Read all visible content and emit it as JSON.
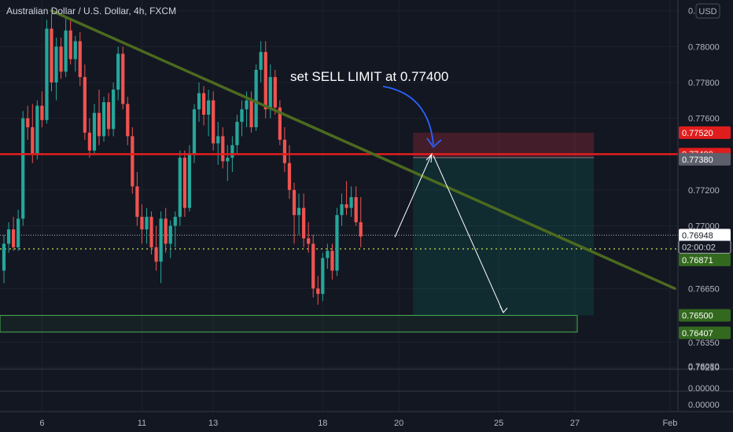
{
  "chart_data": {
    "type": "candlestick",
    "title": "Australian Dollar / U.S. Dollar, 4h, FXCM",
    "currency_label": "USD",
    "annotation": "set SELL LIMIT at 0.77400",
    "ylim": [
      0.762,
      0.7826
    ],
    "x_ticks": [
      {
        "label": "6",
        "t": 8
      },
      {
        "label": "11",
        "t": 29
      },
      {
        "label": "13",
        "t": 44
      },
      {
        "label": "18",
        "t": 67
      },
      {
        "label": "20",
        "t": 83
      },
      {
        "label": "25",
        "t": 104
      },
      {
        "label": "27",
        "t": 120
      },
      {
        "label": "Feb",
        "t": 140
      }
    ],
    "y_ticks": [
      "0.78200",
      "0.78000",
      "0.77800",
      "0.77600",
      "0.77200",
      "0.77000",
      "0.76650",
      "0.76350",
      "0.76210"
    ],
    "sub_axis_ticks": [
      "0.76080",
      "0.00000",
      "0.00000"
    ],
    "price_badges": [
      {
        "label": "0.77520",
        "kind": "red"
      },
      {
        "label": "0.77400",
        "kind": "red"
      },
      {
        "label": "0.77380",
        "kind": "gray"
      },
      {
        "label": "0.76948",
        "kind": "white"
      },
      {
        "label": "02:00:02",
        "kind": "dark"
      },
      {
        "label": "0.76871",
        "kind": "green"
      },
      {
        "label": "0.76500",
        "kind": "green"
      },
      {
        "label": "0.76407",
        "kind": "green"
      }
    ],
    "levels": {
      "resistance": 0.774,
      "current": 0.76948,
      "average": 0.76871,
      "support_top": 0.765,
      "support_bottom": 0.76407,
      "stop_top": 0.7752,
      "entry_box_bottom": 0.7738
    },
    "trendline": {
      "t1": 10,
      "v1": 0.782,
      "t2": 141,
      "v2": 0.7665
    },
    "candles": [
      [
        0,
        0.7675,
        0.7695,
        0.7668,
        0.769
      ],
      [
        1,
        0.769,
        0.7702,
        0.7685,
        0.7698
      ],
      [
        2,
        0.7698,
        0.7705,
        0.7686,
        0.7688
      ],
      [
        3,
        0.7688,
        0.7709,
        0.7686,
        0.7704
      ],
      [
        4,
        0.7704,
        0.7764,
        0.77,
        0.776
      ],
      [
        5,
        0.776,
        0.7767,
        0.7748,
        0.7755
      ],
      [
        6,
        0.7755,
        0.7768,
        0.7735,
        0.774
      ],
      [
        7,
        0.774,
        0.777,
        0.7737,
        0.7767
      ],
      [
        8,
        0.7767,
        0.7775,
        0.7755,
        0.7759
      ],
      [
        9,
        0.7759,
        0.7815,
        0.7757,
        0.781
      ],
      [
        10,
        0.781,
        0.7818,
        0.7775,
        0.778
      ],
      [
        11,
        0.778,
        0.7805,
        0.777,
        0.78
      ],
      [
        12,
        0.78,
        0.7805,
        0.7782,
        0.7786
      ],
      [
        13,
        0.7786,
        0.7816,
        0.7783,
        0.7809
      ],
      [
        14,
        0.7809,
        0.7815,
        0.779,
        0.7793
      ],
      [
        15,
        0.7793,
        0.7806,
        0.7786,
        0.7803
      ],
      [
        16,
        0.7803,
        0.7808,
        0.7778,
        0.7783
      ],
      [
        17,
        0.7783,
        0.779,
        0.7748,
        0.7752
      ],
      [
        18,
        0.7752,
        0.776,
        0.7738,
        0.7742
      ],
      [
        19,
        0.7742,
        0.7768,
        0.774,
        0.7763
      ],
      [
        20,
        0.7763,
        0.7776,
        0.7745,
        0.775
      ],
      [
        21,
        0.775,
        0.7772,
        0.7747,
        0.7769
      ],
      [
        22,
        0.7769,
        0.7774,
        0.775,
        0.7754
      ],
      [
        23,
        0.7754,
        0.778,
        0.775,
        0.7776
      ],
      [
        24,
        0.7776,
        0.78,
        0.777,
        0.7796
      ],
      [
        25,
        0.7796,
        0.78,
        0.7765,
        0.7768
      ],
      [
        26,
        0.7768,
        0.7772,
        0.7745,
        0.775
      ],
      [
        27,
        0.775,
        0.7755,
        0.7718,
        0.7722
      ],
      [
        28,
        0.7722,
        0.773,
        0.77,
        0.7705
      ],
      [
        29,
        0.7705,
        0.7712,
        0.769,
        0.7698
      ],
      [
        30,
        0.7698,
        0.771,
        0.769,
        0.7705
      ],
      [
        31,
        0.7705,
        0.7708,
        0.7684,
        0.7688
      ],
      [
        32,
        0.7688,
        0.77,
        0.7675,
        0.768
      ],
      [
        33,
        0.768,
        0.7708,
        0.7668,
        0.7704
      ],
      [
        34,
        0.7704,
        0.771,
        0.7685,
        0.769
      ],
      [
        35,
        0.769,
        0.7703,
        0.7682,
        0.77
      ],
      [
        36,
        0.77,
        0.7708,
        0.7688,
        0.7705
      ],
      [
        37,
        0.7705,
        0.7742,
        0.77,
        0.7738
      ],
      [
        38,
        0.7738,
        0.7742,
        0.7705,
        0.771
      ],
      [
        39,
        0.771,
        0.7745,
        0.7708,
        0.774
      ],
      [
        40,
        0.774,
        0.7768,
        0.7735,
        0.7765
      ],
      [
        41,
        0.7765,
        0.778,
        0.7758,
        0.7774
      ],
      [
        42,
        0.7774,
        0.7778,
        0.7756,
        0.7762
      ],
      [
        43,
        0.7762,
        0.7776,
        0.775,
        0.777
      ],
      [
        44,
        0.777,
        0.7775,
        0.7742,
        0.7746
      ],
      [
        45,
        0.7746,
        0.7758,
        0.7734,
        0.775
      ],
      [
        46,
        0.775,
        0.7755,
        0.7732,
        0.7736
      ],
      [
        47,
        0.7736,
        0.7745,
        0.7725,
        0.7738
      ],
      [
        48,
        0.7738,
        0.775,
        0.773,
        0.7745
      ],
      [
        49,
        0.7745,
        0.7762,
        0.774,
        0.7758
      ],
      [
        50,
        0.7758,
        0.777,
        0.775,
        0.7765
      ],
      [
        51,
        0.7765,
        0.7775,
        0.7755,
        0.777
      ],
      [
        52,
        0.777,
        0.7775,
        0.7752,
        0.7755
      ],
      [
        53,
        0.7755,
        0.779,
        0.7753,
        0.7787
      ],
      [
        54,
        0.7787,
        0.7803,
        0.778,
        0.7797
      ],
      [
        55,
        0.7797,
        0.7803,
        0.776,
        0.7765
      ],
      [
        56,
        0.7765,
        0.779,
        0.776,
        0.7783
      ],
      [
        57,
        0.7783,
        0.7787,
        0.7762,
        0.7766
      ],
      [
        58,
        0.7766,
        0.777,
        0.7745,
        0.7748
      ],
      [
        59,
        0.7748,
        0.7755,
        0.773,
        0.7735
      ],
      [
        60,
        0.7735,
        0.7745,
        0.7715,
        0.772
      ],
      [
        61,
        0.772,
        0.7724,
        0.769,
        0.7706
      ],
      [
        62,
        0.7706,
        0.7718,
        0.7695,
        0.771
      ],
      [
        63,
        0.771,
        0.7718,
        0.7688,
        0.7693
      ],
      [
        64,
        0.7693,
        0.7702,
        0.7685,
        0.769
      ],
      [
        65,
        0.769,
        0.7695,
        0.766,
        0.7665
      ],
      [
        66,
        0.7665,
        0.7672,
        0.7656,
        0.7662
      ],
      [
        67,
        0.7662,
        0.7685,
        0.7658,
        0.7682
      ],
      [
        68,
        0.7682,
        0.769,
        0.7676,
        0.7686
      ],
      [
        69,
        0.7686,
        0.769,
        0.767,
        0.7675
      ],
      [
        70,
        0.7675,
        0.771,
        0.7672,
        0.7706
      ],
      [
        71,
        0.7706,
        0.7718,
        0.77,
        0.7712
      ],
      [
        72,
        0.7712,
        0.7725,
        0.7706,
        0.771
      ],
      [
        73,
        0.771,
        0.7722,
        0.7705,
        0.7716
      ],
      [
        74,
        0.7716,
        0.7722,
        0.77,
        0.7702
      ],
      [
        75,
        0.7702,
        0.7716,
        0.7688,
        0.7694
      ]
    ]
  }
}
